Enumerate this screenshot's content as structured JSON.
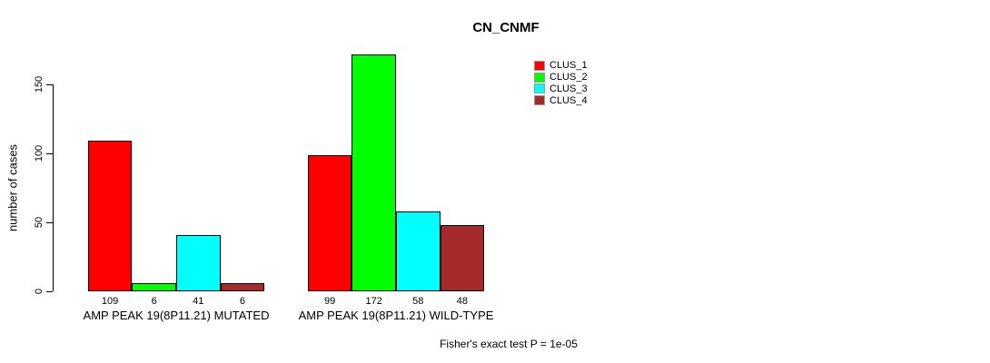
{
  "chart_data": {
    "type": "bar",
    "title": "CN_CNMF",
    "ylabel": "number of cases",
    "xlabel": "",
    "yticks": [
      0,
      50,
      100,
      150
    ],
    "ylim": [
      0,
      175
    ],
    "grid": false,
    "legend_position": "top-right-outside",
    "categories": [
      "AMP PEAK 19(8P11.21) MUTATED",
      "AMP PEAK 19(8P11.21) WILD-TYPE"
    ],
    "series": [
      {
        "name": "CLUS_1",
        "color": "#FF0000",
        "values": [
          109,
          99
        ]
      },
      {
        "name": "CLUS_2",
        "color": "#00FF00",
        "values": [
          6,
          172
        ]
      },
      {
        "name": "CLUS_3",
        "color": "#00FFFF",
        "values": [
          41,
          58
        ]
      },
      {
        "name": "CLUS_4",
        "color": "#A52A2A",
        "values": [
          6,
          48
        ]
      }
    ],
    "bar_value_labels": [
      [
        "109",
        "6",
        "41",
        "6"
      ],
      [
        "99",
        "172",
        "58",
        "48"
      ]
    ],
    "annotation": "Fisher's exact test P = 1e-05"
  }
}
